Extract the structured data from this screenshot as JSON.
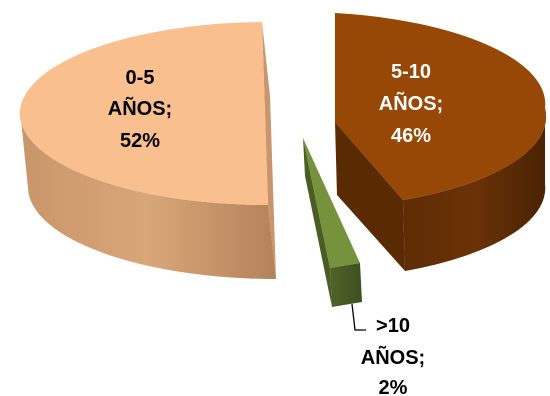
{
  "chart_data": {
    "type": "pie",
    "title": "",
    "slices": [
      {
        "label": "0-5 AÑOS",
        "value": 52,
        "display": [
          "0-5",
          "AÑOS;",
          "52%"
        ],
        "color": "#F9BF8F",
        "text_color": "#000000"
      },
      {
        "label": "5-10 AÑOS",
        "value": 46,
        "display": [
          "5-10",
          "AÑOS;",
          "46%"
        ],
        "color": "#974706",
        "text_color": "#ffffff"
      },
      {
        "label": ">10 AÑOS",
        "value": 2,
        "display": [
          ">10",
          "AÑOS;",
          "2%"
        ],
        "color": "#76923C",
        "text_color": "#000000"
      }
    ],
    "style": "3d-exploded",
    "legend": "none"
  }
}
